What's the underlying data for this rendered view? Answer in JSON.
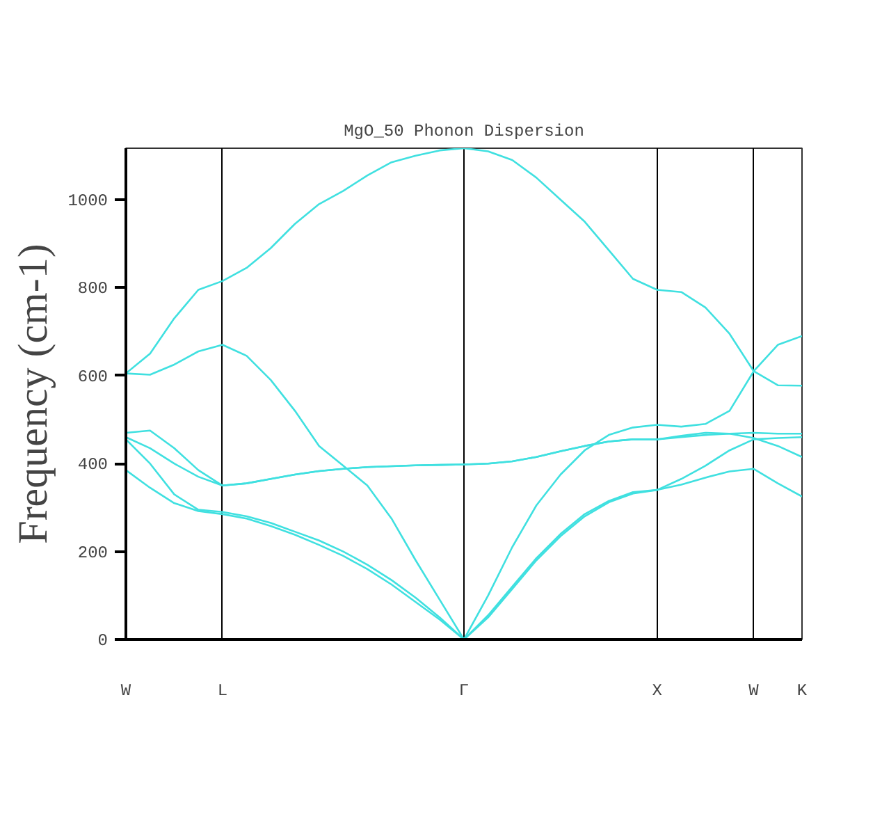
{
  "chart_data": {
    "type": "line",
    "title": "MgO_50 Phonon Dispersion",
    "ylabel": "Frequency (cm-1)",
    "categories": [
      "W",
      null,
      null,
      null,
      "L",
      null,
      null,
      null,
      null,
      null,
      null,
      null,
      null,
      null,
      "Γ",
      null,
      null,
      null,
      null,
      null,
      null,
      null,
      "X",
      null,
      null,
      null,
      "W",
      null,
      "K"
    ],
    "ylim": [
      0,
      1117
    ],
    "yticks": [
      0,
      200,
      400,
      600,
      800,
      1000
    ],
    "grid": "x",
    "series": [
      {
        "color": "#40e0e0",
        "values": [
          605,
          650,
          730,
          795,
          815,
          845,
          890,
          945,
          990,
          1020,
          1055,
          1085,
          1100,
          1112,
          1117,
          1110,
          1090,
          1050,
          1000,
          950,
          885,
          820,
          795,
          790,
          755,
          695,
          610,
          670,
          690
        ]
      },
      {
        "color": "#40e0e0",
        "values": [
          605,
          602,
          625,
          655,
          670,
          645,
          590,
          520,
          440,
          395,
          350,
          275,
          180,
          90,
          0,
          100,
          210,
          305,
          375,
          430,
          465,
          482,
          488,
          484,
          490,
          520,
          610,
          578,
          577
        ]
      },
      {
        "color": "#40e0e0",
        "values": [
          470,
          475,
          435,
          385,
          350,
          355,
          365,
          375,
          383,
          388,
          392,
          394,
          396,
          397,
          398,
          400,
          405,
          415,
          428,
          440,
          450,
          455,
          455,
          460,
          465,
          468,
          470,
          468,
          468
        ]
      },
      {
        "color": "#40e0e0",
        "values": [
          460,
          435,
          400,
          370,
          350,
          355,
          365,
          375,
          383,
          388,
          392,
          394,
          396,
          397,
          398,
          400,
          405,
          415,
          428,
          440,
          450,
          455,
          455,
          463,
          470,
          468,
          458,
          440,
          415
        ]
      },
      {
        "color": "#40e0e0",
        "values": [
          455,
          400,
          330,
          295,
          290,
          280,
          265,
          245,
          225,
          200,
          170,
          135,
          95,
          50,
          0,
          55,
          120,
          185,
          240,
          285,
          315,
          335,
          340,
          365,
          395,
          430,
          455,
          458,
          460
        ]
      },
      {
        "color": "#40e0e0",
        "values": [
          385,
          345,
          310,
          292,
          285,
          275,
          258,
          238,
          215,
          190,
          160,
          125,
          85,
          45,
          0,
          50,
          115,
          180,
          235,
          280,
          312,
          332,
          340,
          352,
          368,
          382,
          388,
          355,
          325
        ]
      }
    ]
  }
}
